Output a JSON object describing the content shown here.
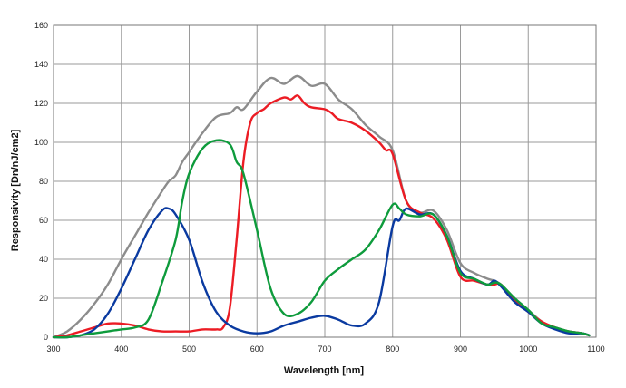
{
  "chart_data": {
    "type": "line",
    "title": "",
    "xlabel": "Wavelength [nm]",
    "ylabel": "Responsivity [Dn/nJ/cm2]",
    "xlim": [
      300,
      1100
    ],
    "ylim": [
      0,
      160
    ],
    "x_ticks": [
      300,
      400,
      500,
      600,
      700,
      800,
      900,
      1000,
      1100
    ],
    "y_ticks": [
      0,
      20,
      40,
      60,
      80,
      100,
      120,
      140,
      160
    ],
    "grid": true,
    "legend": "none",
    "series": [
      {
        "color": "#8c8c8c",
        "x": [
          300,
          320,
          340,
          360,
          380,
          400,
          420,
          440,
          460,
          470,
          480,
          490,
          500,
          520,
          540,
          560,
          570,
          580,
          600,
          620,
          640,
          660,
          680,
          700,
          720,
          740,
          760,
          780,
          800,
          820,
          840,
          860,
          880,
          900,
          920,
          940,
          950,
          960,
          980,
          1000,
          1020,
          1040,
          1060,
          1080,
          1090
        ],
        "y": [
          0,
          3,
          9,
          17,
          27,
          40,
          52,
          64,
          75,
          80,
          83,
          90,
          95,
          105,
          113,
          115,
          118,
          117,
          126,
          133,
          130,
          134,
          129,
          130,
          122,
          117,
          109,
          103,
          96,
          70,
          64,
          65,
          55,
          38,
          33,
          30,
          29,
          27,
          20,
          14,
          8,
          5,
          3,
          2,
          1
        ]
      },
      {
        "color": "#ec1c24",
        "x": [
          300,
          320,
          340,
          360,
          380,
          400,
          420,
          440,
          460,
          480,
          500,
          520,
          540,
          550,
          560,
          570,
          580,
          590,
          600,
          610,
          620,
          640,
          650,
          660,
          670,
          680,
          700,
          710,
          720,
          740,
          760,
          780,
          790,
          800,
          820,
          840,
          860,
          880,
          900,
          920,
          940,
          950,
          960,
          980,
          1000,
          1020,
          1040,
          1060,
          1080,
          1090
        ],
        "y": [
          0,
          1,
          3,
          5,
          7,
          7,
          6,
          4,
          3,
          3,
          3,
          4,
          4,
          5,
          15,
          50,
          90,
          110,
          115,
          117,
          120,
          123,
          122,
          124,
          120,
          118,
          117,
          115,
          112,
          110,
          106,
          100,
          96,
          94,
          70,
          64,
          61,
          50,
          31,
          29,
          27,
          27,
          27,
          19,
          13,
          8,
          5,
          3,
          2,
          1
        ]
      },
      {
        "color": "#0a3aa0",
        "x": [
          300,
          320,
          340,
          360,
          380,
          400,
          420,
          440,
          460,
          470,
          480,
          500,
          520,
          540,
          560,
          580,
          600,
          620,
          640,
          660,
          680,
          700,
          720,
          740,
          760,
          780,
          800,
          810,
          820,
          840,
          860,
          880,
          900,
          920,
          940,
          950,
          960,
          980,
          1000,
          1020,
          1040,
          1060,
          1080,
          1090
        ],
        "y": [
          0,
          0,
          1,
          4,
          12,
          25,
          40,
          55,
          65,
          66,
          63,
          50,
          28,
          13,
          6,
          3,
          2,
          3,
          6,
          8,
          10,
          11,
          9,
          6,
          7,
          18,
          57,
          60,
          66,
          63,
          63,
          52,
          34,
          30,
          27,
          29,
          26,
          18,
          13,
          7,
          4,
          2,
          2,
          1
        ]
      },
      {
        "color": "#0e9b3c",
        "x": [
          300,
          320,
          340,
          360,
          380,
          400,
          420,
          440,
          460,
          480,
          490,
          500,
          520,
          540,
          560,
          570,
          580,
          600,
          620,
          640,
          660,
          680,
          700,
          720,
          740,
          760,
          780,
          800,
          810,
          820,
          840,
          860,
          880,
          900,
          920,
          940,
          950,
          960,
          980,
          1000,
          1020,
          1040,
          1060,
          1080,
          1090
        ],
        "y": [
          0,
          0,
          1,
          2,
          3,
          4,
          5,
          9,
          28,
          50,
          70,
          84,
          97,
          101,
          99,
          90,
          84,
          55,
          25,
          12,
          12,
          18,
          29,
          35,
          40,
          45,
          55,
          68,
          66,
          63,
          62,
          63,
          52,
          33,
          30,
          27,
          28,
          27,
          20,
          14,
          7,
          5,
          3,
          2,
          1
        ]
      }
    ]
  }
}
